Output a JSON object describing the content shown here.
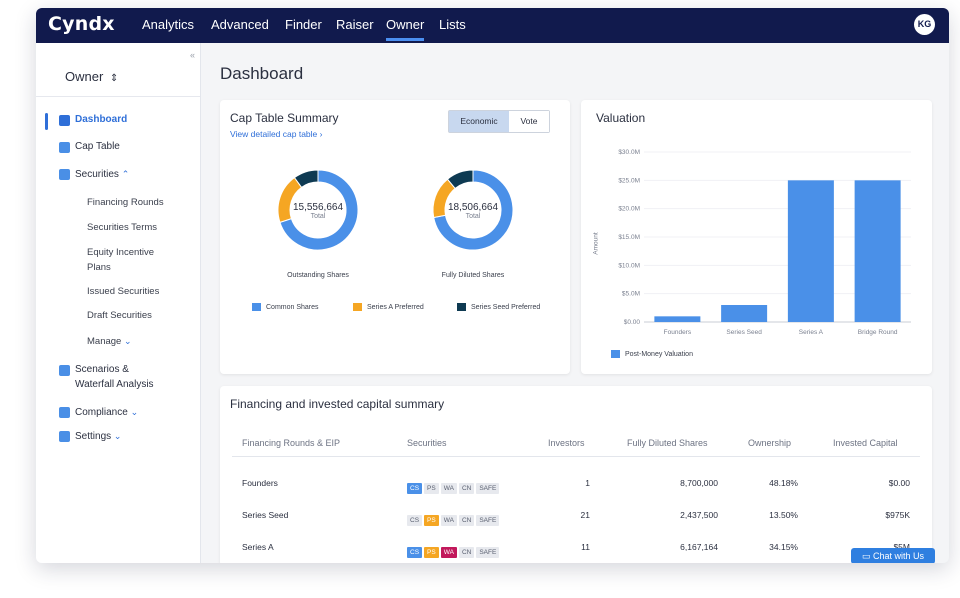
{
  "app": {
    "logo": "Cyndx",
    "avatar": "KG"
  },
  "nav": {
    "items": [
      "Analytics",
      "Advanced",
      "Finder",
      "Raiser",
      "Owner",
      "Lists"
    ],
    "active": "Owner"
  },
  "sidebar": {
    "selector": "Owner",
    "collapse_icon": "«",
    "items": [
      {
        "label": "Dashboard",
        "icon": "dashboard-icon"
      },
      {
        "label": "Cap Table",
        "icon": "cap-table-icon"
      },
      {
        "label": "Securities",
        "icon": "securities-icon"
      },
      {
        "label": "Scenarios &",
        "label2": "Waterfall Analysis",
        "icon": "scenarios-icon"
      },
      {
        "label": "Compliance",
        "icon": "compliance-icon"
      },
      {
        "label": "Settings",
        "icon": "settings-icon"
      }
    ],
    "securities_sub": [
      "Financing Rounds",
      "Securities Terms",
      "Equity Incentive",
      "Plans",
      "Issued Securities",
      "Draft Securities",
      "Manage"
    ]
  },
  "page": {
    "title": "Dashboard"
  },
  "cap_table": {
    "title": "Cap Table Summary",
    "link": "View detailed cap table",
    "toggle": [
      "Economic",
      "Vote"
    ],
    "donuts": [
      {
        "value": "15,556,664",
        "label": "Total",
        "caption": "Outstanding Shares",
        "shares": [
          0.7,
          0.2,
          0.1
        ]
      },
      {
        "value": "18,506,664",
        "label": "Total",
        "caption": "Fully Diluted Shares",
        "shares": [
          0.72,
          0.17,
          0.11
        ]
      }
    ],
    "legend": [
      "Common Shares",
      "Series A Preferred",
      "Series Seed Preferred"
    ]
  },
  "colors": {
    "common": "#4a90e8",
    "seriesA": "#f5a623",
    "seriesSeed": "#0e3a52",
    "accent": "#2f6fd8",
    "navbar": "#111a4d"
  },
  "chart_data": {
    "type": "bar",
    "title": "Valuation",
    "categories": [
      "Founders",
      "Series Seed",
      "Series A",
      "Bridge Round"
    ],
    "series": [
      {
        "name": "Post-Money Valuation",
        "values": [
          1.0,
          3.0,
          25.0,
          25.0
        ]
      }
    ],
    "ylabel": "Amount",
    "yticks": [
      "$0.00",
      "$5.0M",
      "$10.0M",
      "$15.0M",
      "$20.0M",
      "$25.0M",
      "$30.0M"
    ],
    "ylim": [
      0,
      30
    ]
  },
  "financing": {
    "title": "Financing and invested capital summary",
    "headers": [
      "Financing Rounds & EIP",
      "Securities",
      "Investors",
      "Fully Diluted Shares",
      "Ownership",
      "Invested Capital"
    ],
    "rows": [
      {
        "round": "Founders",
        "investors": "1",
        "shares": "8,700,000",
        "ownership": "48.18%",
        "capital": "$0.00",
        "badges": [
          [
            "CS",
            "#4a90e8",
            "#fff"
          ],
          [
            "PS",
            "#e7e9ee",
            "#5a6070"
          ],
          [
            "WA",
            "#e7e9ee",
            "#5a6070"
          ],
          [
            "CN",
            "#e7e9ee",
            "#5a6070"
          ],
          [
            "SAFE",
            "#e7e9ee",
            "#5a6070"
          ]
        ]
      },
      {
        "round": "Series Seed",
        "investors": "21",
        "shares": "2,437,500",
        "ownership": "13.50%",
        "capital": "$975K",
        "badges": [
          [
            "CS",
            "#e7e9ee",
            "#5a6070"
          ],
          [
            "PS",
            "#f5a623",
            "#fff"
          ],
          [
            "WA",
            "#e7e9ee",
            "#5a6070"
          ],
          [
            "CN",
            "#e7e9ee",
            "#5a6070"
          ],
          [
            "SAFE",
            "#e7e9ee",
            "#5a6070"
          ]
        ]
      },
      {
        "round": "Series A",
        "investors": "11",
        "shares": "6,167,164",
        "ownership": "34.15%",
        "capital": "$5M",
        "badges": [
          [
            "CS",
            "#4a90e8",
            "#fff"
          ],
          [
            "PS",
            "#f5a623",
            "#fff"
          ],
          [
            "WA",
            "#c2185b",
            "#fff"
          ],
          [
            "CN",
            "#e7e9ee",
            "#5a6070"
          ],
          [
            "SAFE",
            "#e7e9ee",
            "#5a6070"
          ]
        ]
      }
    ]
  },
  "chat": {
    "label": "Chat with Us"
  }
}
